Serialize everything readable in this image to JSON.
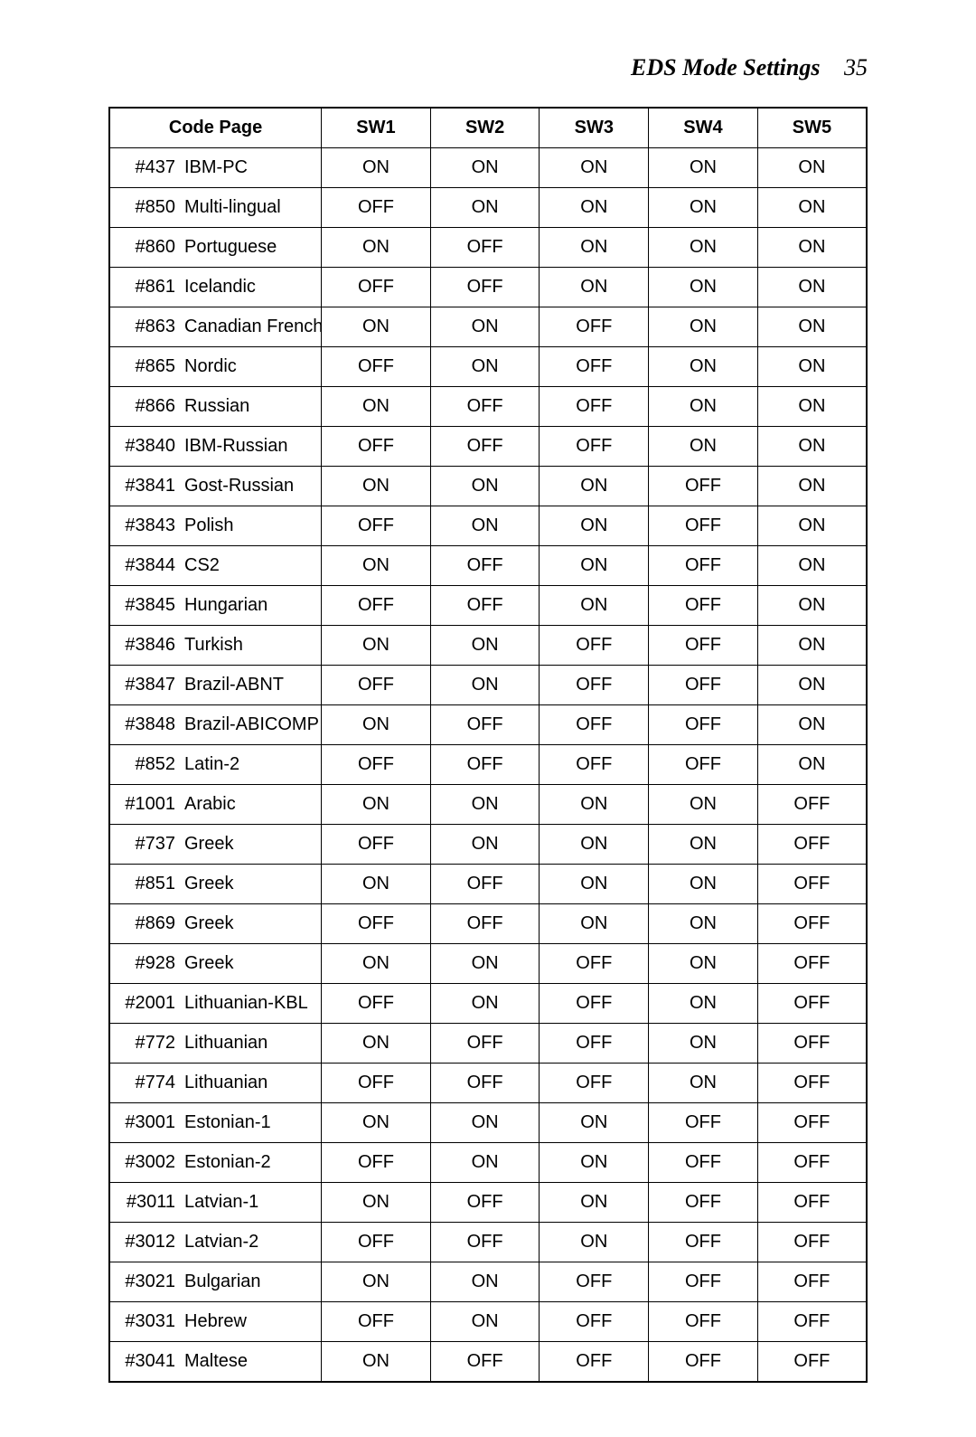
{
  "header": {
    "title": "EDS Mode Settings",
    "page_number": "35"
  },
  "table": {
    "columns": [
      "Code Page",
      "SW1",
      "SW2",
      "SW3",
      "SW4",
      "SW5"
    ],
    "rows": [
      {
        "code": "#437",
        "name": "IBM-PC",
        "sw": [
          "ON",
          "ON",
          "ON",
          "ON",
          "ON"
        ]
      },
      {
        "code": "#850",
        "name": "Multi-lingual",
        "sw": [
          "OFF",
          "ON",
          "ON",
          "ON",
          "ON"
        ]
      },
      {
        "code": "#860",
        "name": "Portuguese",
        "sw": [
          "ON",
          "OFF",
          "ON",
          "ON",
          "ON"
        ]
      },
      {
        "code": "#861",
        "name": "Icelandic",
        "sw": [
          "OFF",
          "OFF",
          "ON",
          "ON",
          "ON"
        ]
      },
      {
        "code": "#863",
        "name": "Canadian French",
        "sw": [
          "ON",
          "ON",
          "OFF",
          "ON",
          "ON"
        ]
      },
      {
        "code": "#865",
        "name": "Nordic",
        "sw": [
          "OFF",
          "ON",
          "OFF",
          "ON",
          "ON"
        ]
      },
      {
        "code": "#866",
        "name": "Russian",
        "sw": [
          "ON",
          "OFF",
          "OFF",
          "ON",
          "ON"
        ]
      },
      {
        "code": "#3840",
        "name": "IBM-Russian",
        "sw": [
          "OFF",
          "OFF",
          "OFF",
          "ON",
          "ON"
        ]
      },
      {
        "code": "#3841",
        "name": "Gost-Russian",
        "sw": [
          "ON",
          "ON",
          "ON",
          "OFF",
          "ON"
        ]
      },
      {
        "code": "#3843",
        "name": "Polish",
        "sw": [
          "OFF",
          "ON",
          "ON",
          "OFF",
          "ON"
        ]
      },
      {
        "code": "#3844",
        "name": "CS2",
        "sw": [
          "ON",
          "OFF",
          "ON",
          "OFF",
          "ON"
        ]
      },
      {
        "code": "#3845",
        "name": "Hungarian",
        "sw": [
          "OFF",
          "OFF",
          "ON",
          "OFF",
          "ON"
        ]
      },
      {
        "code": "#3846",
        "name": "Turkish",
        "sw": [
          "ON",
          "ON",
          "OFF",
          "OFF",
          "ON"
        ]
      },
      {
        "code": "#3847",
        "name": "Brazil-ABNT",
        "sw": [
          "OFF",
          "ON",
          "OFF",
          "OFF",
          "ON"
        ]
      },
      {
        "code": "#3848",
        "name": "Brazil-ABICOMP",
        "sw": [
          "ON",
          "OFF",
          "OFF",
          "OFF",
          "ON"
        ]
      },
      {
        "code": "#852",
        "name": "Latin-2",
        "sw": [
          "OFF",
          "OFF",
          "OFF",
          "OFF",
          "ON"
        ]
      },
      {
        "code": "#1001",
        "name": "Arabic",
        "sw": [
          "ON",
          "ON",
          "ON",
          "ON",
          "OFF"
        ]
      },
      {
        "code": "#737",
        "name": "Greek",
        "sw": [
          "OFF",
          "ON",
          "ON",
          "ON",
          "OFF"
        ]
      },
      {
        "code": "#851",
        "name": "Greek",
        "sw": [
          "ON",
          "OFF",
          "ON",
          "ON",
          "OFF"
        ]
      },
      {
        "code": "#869",
        "name": "Greek",
        "sw": [
          "OFF",
          "OFF",
          "ON",
          "ON",
          "OFF"
        ]
      },
      {
        "code": "#928",
        "name": "Greek",
        "sw": [
          "ON",
          "ON",
          "OFF",
          "ON",
          "OFF"
        ]
      },
      {
        "code": "#2001",
        "name": "Lithuanian-KBL",
        "sw": [
          "OFF",
          "ON",
          "OFF",
          "ON",
          "OFF"
        ]
      },
      {
        "code": "#772",
        "name": "Lithuanian",
        "sw": [
          "ON",
          "OFF",
          "OFF",
          "ON",
          "OFF"
        ]
      },
      {
        "code": "#774",
        "name": "Lithuanian",
        "sw": [
          "OFF",
          "OFF",
          "OFF",
          "ON",
          "OFF"
        ]
      },
      {
        "code": "#3001",
        "name": "Estonian-1",
        "sw": [
          "ON",
          "ON",
          "ON",
          "OFF",
          "OFF"
        ]
      },
      {
        "code": "#3002",
        "name": "Estonian-2",
        "sw": [
          "OFF",
          "ON",
          "ON",
          "OFF",
          "OFF"
        ]
      },
      {
        "code": "#3011",
        "name": "Latvian-1",
        "sw": [
          "ON",
          "OFF",
          "ON",
          "OFF",
          "OFF"
        ]
      },
      {
        "code": "#3012",
        "name": "Latvian-2",
        "sw": [
          "OFF",
          "OFF",
          "ON",
          "OFF",
          "OFF"
        ]
      },
      {
        "code": "#3021",
        "name": "Bulgarian",
        "sw": [
          "ON",
          "ON",
          "OFF",
          "OFF",
          "OFF"
        ]
      },
      {
        "code": "#3031",
        "name": "Hebrew",
        "sw": [
          "OFF",
          "ON",
          "OFF",
          "OFF",
          "OFF"
        ]
      },
      {
        "code": "#3041",
        "name": "Maltese",
        "sw": [
          "ON",
          "OFF",
          "OFF",
          "OFF",
          "OFF"
        ]
      }
    ]
  },
  "style": {
    "background_color": "#ffffff",
    "text_color": "#000000",
    "border_color": "#000000",
    "header_font_family": "Times New Roman",
    "header_font_size_pt": 20,
    "body_font_family": "Arial",
    "body_font_size_pt": 15
  }
}
